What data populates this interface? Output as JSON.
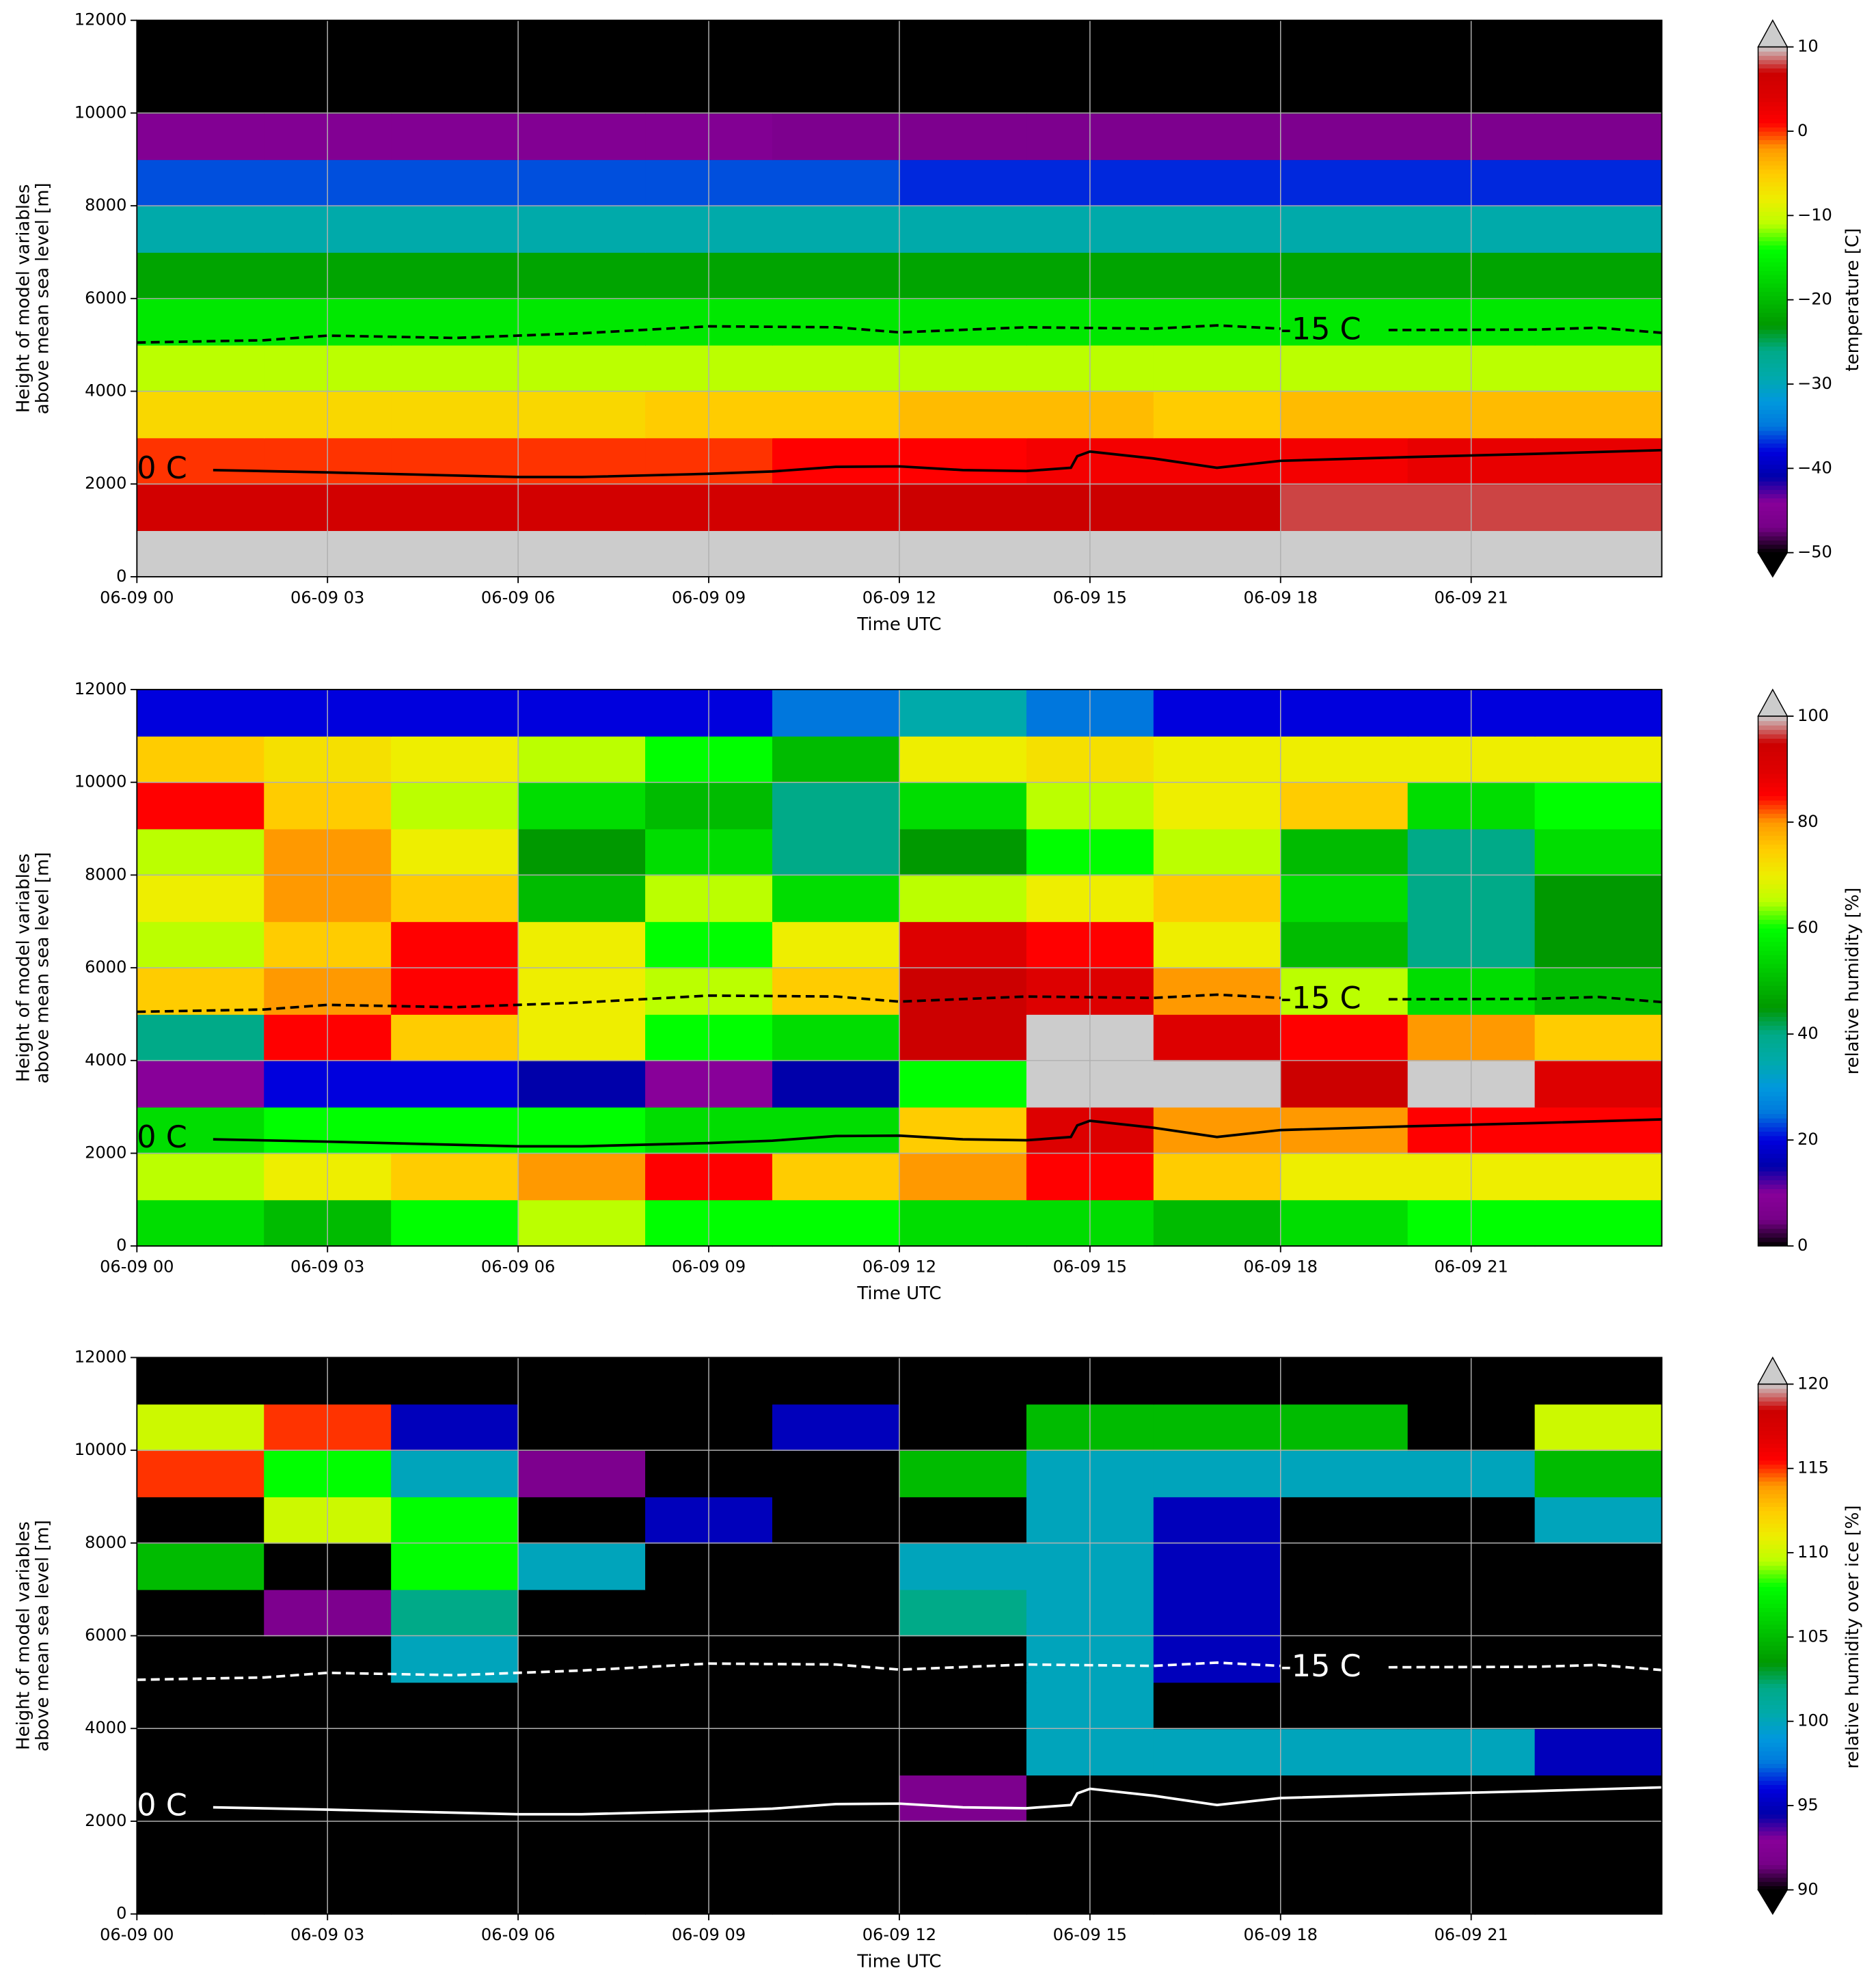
{
  "chart_data": [
    {
      "type": "heatmap",
      "colormap": "nipy_spectral",
      "clim": [
        -50,
        10
      ],
      "extend": "both",
      "xlabel": "Time UTC",
      "ylabel": [
        "Height of model variables",
        "above mean sea level [m]"
      ],
      "colorbar_label": "temperature [C]",
      "xlim": [
        0,
        24
      ],
      "ylim": [
        0,
        12000
      ],
      "grid": true,
      "xticks": [
        {
          "value": 0,
          "label": "06-09 00"
        },
        {
          "value": 3,
          "label": "06-09 03"
        },
        {
          "value": 6,
          "label": "06-09 06"
        },
        {
          "value": 9,
          "label": "06-09 09"
        },
        {
          "value": 12,
          "label": "06-09 12"
        },
        {
          "value": 15,
          "label": "06-09 15"
        },
        {
          "value": 18,
          "label": "06-09 18"
        },
        {
          "value": 21,
          "label": "06-09 21"
        }
      ],
      "yticks": [
        0,
        2000,
        4000,
        6000,
        8000,
        10000,
        12000
      ],
      "cticks": [
        {
          "value": -50,
          "label": "−50"
        },
        {
          "value": -40,
          "label": "−40"
        },
        {
          "value": -30,
          "label": "−30"
        },
        {
          "value": -20,
          "label": "−20"
        },
        {
          "value": -10,
          "label": "−10"
        },
        0,
        10
      ],
      "x_edges": [
        0,
        2,
        4,
        6,
        8,
        10,
        12,
        14,
        16,
        18,
        20,
        22,
        24
      ],
      "y_edges": [
        0,
        1000,
        2000,
        3000,
        4000,
        5000,
        6000,
        7000,
        8000,
        9000,
        10000,
        11000,
        12000
      ],
      "z": [
        [
          12,
          12,
          12,
          12,
          12,
          12,
          12,
          12,
          12,
          12,
          12,
          12
        ],
        [
          6,
          6,
          6,
          6,
          6,
          6,
          7,
          7,
          7,
          8,
          8,
          8
        ],
        [
          0,
          0,
          0,
          0,
          0,
          1,
          1,
          2,
          2,
          2,
          3,
          3
        ],
        [
          -6,
          -6,
          -6,
          -6,
          -5,
          -5,
          -4,
          -4,
          -5,
          -4,
          -4,
          -4
        ],
        [
          -11,
          -11,
          -11,
          -11,
          -11,
          -11,
          -11,
          -11,
          -11,
          -11,
          -11,
          -11
        ],
        [
          -16,
          -16,
          -16,
          -16,
          -16,
          -16,
          -16,
          -16,
          -16,
          -16,
          -16,
          -16
        ],
        [
          -22,
          -22,
          -22,
          -22,
          -22,
          -22,
          -22,
          -22,
          -22,
          -22,
          -22,
          -22
        ],
        [
          -29,
          -29,
          -29,
          -29,
          -29,
          -29,
          -29,
          -29,
          -29,
          -29,
          -29,
          -29
        ],
        [
          -36,
          -36,
          -36,
          -36,
          -36,
          -36,
          -37,
          -37,
          -37,
          -37,
          -37,
          -37
        ],
        [
          -45,
          -45,
          -45,
          -45,
          -45,
          -46,
          -46,
          -46,
          -46,
          -46,
          -46,
          -46
        ],
        [
          -55,
          -55,
          -55,
          -55,
          -55,
          -55,
          -55,
          -55,
          -55,
          -55,
          -55,
          -55
        ],
        [
          -55,
          -55,
          -55,
          -55,
          -55,
          -55,
          -55,
          -55,
          -55,
          -55,
          -55,
          -55
        ]
      ],
      "series": [
        {
          "name": "0 C",
          "color": "#000000",
          "dashed": false,
          "label_x": 0,
          "label_y": 2300,
          "x": [
            1.2,
            3,
            6,
            7,
            9,
            10,
            11,
            12,
            13,
            14,
            14.7,
            14.8,
            15,
            16,
            17,
            18,
            20,
            22,
            24
          ],
          "values": [
            2300,
            2250,
            2150,
            2150,
            2220,
            2270,
            2370,
            2380,
            2300,
            2280,
            2350,
            2600,
            2700,
            2550,
            2350,
            2500,
            2580,
            2650,
            2730
          ]
        },
        {
          "name": "-15 C",
          "color": "#000000",
          "dashed": true,
          "label_x": 18,
          "label_y": 5300,
          "x": [
            0,
            2,
            3,
            5,
            7,
            9,
            11,
            12,
            14,
            16,
            17,
            18,
            18.5,
            19.7,
            22,
            23,
            24
          ],
          "values": [
            5050,
            5100,
            5200,
            5150,
            5250,
            5400,
            5380,
            5270,
            5380,
            5350,
            5420,
            5350,
            null,
            5320,
            5330,
            5370,
            5260
          ]
        }
      ]
    },
    {
      "type": "heatmap",
      "colormap": "nipy_spectral",
      "clim": [
        0,
        100
      ],
      "extend": "max",
      "xlabel": "Time UTC",
      "ylabel": [
        "Height of model variables",
        "above mean sea level [m]"
      ],
      "colorbar_label": "relative humidity [%]",
      "xlim": [
        0,
        24
      ],
      "ylim": [
        0,
        12000
      ],
      "grid": true,
      "xticks": [
        {
          "value": 0,
          "label": "06-09 00"
        },
        {
          "value": 3,
          "label": "06-09 03"
        },
        {
          "value": 6,
          "label": "06-09 06"
        },
        {
          "value": 9,
          "label": "06-09 09"
        },
        {
          "value": 12,
          "label": "06-09 12"
        },
        {
          "value": 15,
          "label": "06-09 15"
        },
        {
          "value": 18,
          "label": "06-09 18"
        },
        {
          "value": 21,
          "label": "06-09 21"
        }
      ],
      "yticks": [
        0,
        2000,
        4000,
        6000,
        8000,
        10000,
        12000
      ],
      "cticks": [
        0,
        20,
        40,
        60,
        80,
        100
      ],
      "x_edges": [
        0,
        2,
        4,
        6,
        8,
        10,
        12,
        14,
        16,
        18,
        20,
        22,
        24
      ],
      "y_edges": [
        0,
        1000,
        2000,
        3000,
        4000,
        5000,
        6000,
        7000,
        8000,
        9000,
        10000,
        11000,
        12000
      ],
      "z": [
        [
          55,
          50,
          60,
          65,
          60,
          60,
          55,
          55,
          50,
          55,
          60,
          60
        ],
        [
          65,
          70,
          75,
          80,
          85,
          75,
          80,
          85,
          75,
          70,
          70,
          70
        ],
        [
          55,
          60,
          60,
          60,
          55,
          55,
          75,
          90,
          80,
          80,
          85,
          85
        ],
        [
          10,
          20,
          20,
          15,
          10,
          15,
          60,
          100,
          102,
          95,
          102,
          90
        ],
        [
          40,
          85,
          75,
          70,
          60,
          55,
          95,
          100,
          90,
          85,
          80,
          75
        ],
        [
          75,
          80,
          85,
          70,
          65,
          75,
          95,
          90,
          80,
          65,
          55,
          50
        ],
        [
          65,
          75,
          85,
          70,
          60,
          70,
          90,
          85,
          70,
          50,
          40,
          45
        ],
        [
          70,
          80,
          75,
          50,
          65,
          55,
          65,
          70,
          75,
          55,
          40,
          45
        ],
        [
          65,
          80,
          70,
          45,
          55,
          40,
          45,
          60,
          65,
          50,
          40,
          55
        ],
        [
          85,
          75,
          65,
          55,
          50,
          40,
          55,
          65,
          70,
          75,
          55,
          60
        ],
        [
          75,
          72,
          70,
          65,
          60,
          50,
          70,
          72,
          70,
          70,
          70,
          70
        ],
        [
          20,
          20,
          20,
          20,
          20,
          25,
          35,
          25,
          20,
          20,
          20,
          20
        ]
      ],
      "series": [
        {
          "name": "0 C",
          "color": "#000000",
          "dashed": false,
          "label_x": 0,
          "label_y": 2300,
          "x": [
            1.2,
            3,
            6,
            7,
            9,
            10,
            11,
            12,
            13,
            14,
            14.7,
            14.8,
            15,
            16,
            17,
            18,
            20,
            22,
            24
          ],
          "values": [
            2300,
            2250,
            2150,
            2150,
            2220,
            2270,
            2370,
            2380,
            2300,
            2280,
            2350,
            2600,
            2700,
            2550,
            2350,
            2500,
            2580,
            2650,
            2730
          ]
        },
        {
          "name": "-15 C",
          "color": "#000000",
          "dashed": true,
          "label_x": 18,
          "label_y": 5300,
          "x": [
            0,
            2,
            3,
            5,
            7,
            9,
            11,
            12,
            14,
            16,
            17,
            18,
            18.5,
            19.7,
            22,
            23,
            24
          ],
          "values": [
            5050,
            5100,
            5200,
            5150,
            5250,
            5400,
            5380,
            5270,
            5380,
            5350,
            5420,
            5350,
            null,
            5320,
            5330,
            5370,
            5260
          ]
        }
      ]
    },
    {
      "type": "heatmap",
      "colormap": "nipy_spectral",
      "clim": [
        90,
        120
      ],
      "extend": "both",
      "xlabel": "Time UTC",
      "ylabel": [
        "Height of model variables",
        "above mean sea level [m]"
      ],
      "colorbar_label": "relative humidity over ice [%]",
      "xlim": [
        0,
        24
      ],
      "ylim": [
        0,
        12000
      ],
      "grid": true,
      "xticks": [
        {
          "value": 0,
          "label": "06-09 00"
        },
        {
          "value": 3,
          "label": "06-09 03"
        },
        {
          "value": 6,
          "label": "06-09 06"
        },
        {
          "value": 9,
          "label": "06-09 09"
        },
        {
          "value": 12,
          "label": "06-09 12"
        },
        {
          "value": 15,
          "label": "06-09 15"
        },
        {
          "value": 18,
          "label": "06-09 18"
        },
        {
          "value": 21,
          "label": "06-09 21"
        }
      ],
      "yticks": [
        0,
        2000,
        4000,
        6000,
        8000,
        10000,
        12000
      ],
      "cticks": [
        90,
        95,
        100,
        105,
        110,
        115,
        120
      ],
      "x_edges": [
        0,
        2,
        4,
        6,
        8,
        10,
        12,
        14,
        16,
        18,
        20,
        22,
        24
      ],
      "y_edges": [
        0,
        1000,
        2000,
        3000,
        4000,
        5000,
        6000,
        7000,
        8000,
        9000,
        10000,
        11000,
        12000
      ],
      "z": [
        [
          80,
          80,
          80,
          80,
          80,
          80,
          80,
          80,
          80,
          80,
          80,
          80
        ],
        [
          80,
          80,
          80,
          80,
          80,
          80,
          80,
          80,
          80,
          80,
          80,
          80
        ],
        [
          80,
          80,
          80,
          80,
          80,
          80,
          92,
          80,
          80,
          80,
          80,
          80
        ],
        [
          80,
          80,
          80,
          80,
          80,
          80,
          80,
          100,
          100,
          100,
          100,
          95
        ],
        [
          80,
          80,
          80,
          80,
          80,
          80,
          80,
          100,
          90,
          80,
          80,
          80
        ],
        [
          80,
          80,
          100,
          80,
          80,
          80,
          80,
          100,
          95,
          80,
          80,
          80
        ],
        [
          80,
          92,
          102,
          80,
          80,
          80,
          102,
          100,
          95,
          80,
          80,
          80
        ],
        [
          105,
          80,
          108,
          100,
          80,
          80,
          100,
          100,
          95,
          80,
          80,
          80
        ],
        [
          80,
          110,
          108,
          80,
          95,
          80,
          80,
          100,
          95,
          80,
          80,
          100
        ],
        [
          115,
          108,
          100,
          92,
          80,
          80,
          105,
          100,
          100,
          100,
          100,
          105
        ],
        [
          110,
          115,
          95,
          80,
          80,
          95,
          80,
          105,
          105,
          105,
          80,
          110
        ],
        [
          80,
          80,
          80,
          80,
          80,
          80,
          80,
          80,
          80,
          80,
          80,
          80
        ]
      ],
      "series": [
        {
          "name": "0 C",
          "color": "#ffffff",
          "dashed": false,
          "label_x": 0,
          "label_y": 2300,
          "x": [
            1.2,
            3,
            6,
            7,
            9,
            10,
            11,
            12,
            13,
            14,
            14.7,
            14.8,
            15,
            16,
            17,
            18,
            20,
            22,
            24
          ],
          "values": [
            2300,
            2250,
            2150,
            2150,
            2220,
            2270,
            2370,
            2380,
            2300,
            2280,
            2350,
            2600,
            2700,
            2550,
            2350,
            2500,
            2580,
            2650,
            2730
          ]
        },
        {
          "name": "-15 C",
          "color": "#ffffff",
          "dashed": true,
          "label_x": 18,
          "label_y": 5300,
          "x": [
            0,
            2,
            3,
            5,
            7,
            9,
            11,
            12,
            14,
            16,
            17,
            18,
            18.5,
            19.7,
            22,
            23,
            24
          ],
          "values": [
            5050,
            5100,
            5200,
            5150,
            5250,
            5400,
            5380,
            5270,
            5380,
            5350,
            5420,
            5350,
            null,
            5320,
            5330,
            5370,
            5260
          ]
        }
      ]
    }
  ]
}
